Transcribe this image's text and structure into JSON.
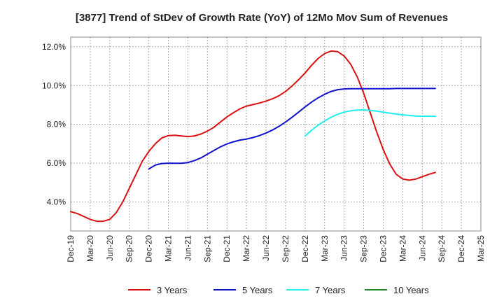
{
  "chart_data": {
    "type": "line",
    "title": "[3877]  Trend of StDev of Growth Rate (YoY) of 12Mo Mov Sum of Revenues",
    "xlabel": "",
    "ylabel": "",
    "ylim": [
      2.5,
      12.5
    ],
    "y_ticks": [
      4.0,
      6.0,
      8.0,
      10.0,
      12.0
    ],
    "y_tick_labels": [
      "4.0%",
      "6.0%",
      "8.0%",
      "10.0%",
      "12.0%"
    ],
    "x_tick_labels": [
      "Dec-19",
      "Mar-20",
      "Jun-20",
      "Sep-20",
      "Dec-20",
      "Mar-21",
      "Jun-21",
      "Sep-21",
      "Dec-21",
      "Mar-22",
      "Jun-22",
      "Sep-22",
      "Dec-22",
      "Mar-23",
      "Jun-23",
      "Sep-23",
      "Dec-23",
      "Mar-24",
      "Jun-24",
      "Sep-24",
      "Dec-24",
      "Mar-25"
    ],
    "grid": true,
    "legend_position": "bottom",
    "series": [
      {
        "name": "3 Years",
        "color": "#dd1111",
        "start_index": 0,
        "values": [
          3.5,
          3.4,
          3.25,
          3.1,
          3.0,
          3.0,
          3.1,
          3.45,
          4.0,
          4.7,
          5.4,
          6.1,
          6.6,
          7.0,
          7.3,
          7.42,
          7.44,
          7.4,
          7.37,
          7.4,
          7.5,
          7.65,
          7.85,
          8.12,
          8.38,
          8.6,
          8.8,
          8.94,
          9.02,
          9.1,
          9.2,
          9.32,
          9.48,
          9.7,
          9.98,
          10.3,
          10.65,
          11.05,
          11.4,
          11.65,
          11.78,
          11.75,
          11.52,
          11.1,
          10.45,
          9.6,
          8.6,
          7.6,
          6.7,
          5.95,
          5.42,
          5.18,
          5.12,
          5.18,
          5.3,
          5.42,
          5.52
        ]
      },
      {
        "name": "5 Years",
        "color": "#1111cc",
        "start_index": 12,
        "values": [
          5.7,
          5.9,
          5.98,
          6.0,
          5.99,
          5.99,
          6.03,
          6.13,
          6.27,
          6.46,
          6.65,
          6.84,
          6.99,
          7.1,
          7.19,
          7.24,
          7.32,
          7.42,
          7.55,
          7.71,
          7.9,
          8.12,
          8.37,
          8.63,
          8.9,
          9.15,
          9.37,
          9.55,
          9.7,
          9.79,
          9.83,
          9.84,
          9.84,
          9.84,
          9.84,
          9.84,
          9.84,
          9.84,
          9.85,
          9.85,
          9.85,
          9.85,
          9.85,
          9.85,
          9.85
        ]
      },
      {
        "name": "7 Years",
        "color": "#22eeee",
        "start_index": 36,
        "values": [
          7.4,
          7.7,
          7.96,
          8.18,
          8.37,
          8.52,
          8.63,
          8.7,
          8.74,
          8.75,
          8.72,
          8.68,
          8.63,
          8.58,
          8.53,
          8.49,
          8.46,
          8.43,
          8.42,
          8.42,
          8.41
        ]
      },
      {
        "name": "10 Years",
        "color": "#228822",
        "start_index": 0,
        "values": []
      }
    ]
  }
}
